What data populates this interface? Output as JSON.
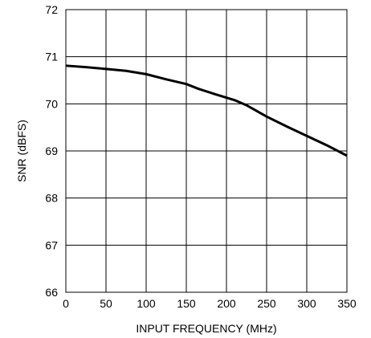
{
  "chart_data": {
    "type": "line",
    "title": "",
    "xlabel": "INPUT FREQUENCY (MHz)",
    "ylabel": "SNR (dBFS)",
    "xlim": [
      0,
      350
    ],
    "ylim": [
      66,
      72
    ],
    "x_ticks": [
      0,
      50,
      100,
      150,
      200,
      250,
      300,
      350
    ],
    "y_ticks": [
      66,
      67,
      68,
      69,
      70,
      71,
      72
    ],
    "grid": true,
    "legend": "none",
    "series": [
      {
        "color": "#000000",
        "x": [
          0,
          25,
          50,
          75,
          100,
          125,
          150,
          165,
          185,
          210,
          225,
          250,
          275,
          300,
          325,
          350
        ],
        "y": [
          70.81,
          70.78,
          70.74,
          70.7,
          70.63,
          70.52,
          70.42,
          70.32,
          70.21,
          70.08,
          69.97,
          69.73,
          69.52,
          69.32,
          69.12,
          68.9
        ]
      }
    ]
  }
}
